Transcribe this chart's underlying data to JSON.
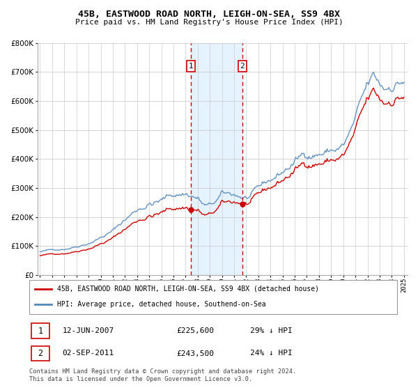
{
  "title": "45B, EASTWOOD ROAD NORTH, LEIGH-ON-SEA, SS9 4BX",
  "subtitle": "Price paid vs. HM Land Registry's House Price Index (HPI)",
  "legend_label1": "45B, EASTWOOD ROAD NORTH, LEIGH-ON-SEA, SS9 4BX (detached house)",
  "legend_label2": "HPI: Average price, detached house, Southend-on-Sea",
  "table_row1": [
    "1",
    "12-JUN-2007",
    "£225,600",
    "29% ↓ HPI"
  ],
  "table_row2": [
    "2",
    "02-SEP-2011",
    "£243,500",
    "24% ↓ HPI"
  ],
  "footer": "Contains HM Land Registry data © Crown copyright and database right 2024.\nThis data is licensed under the Open Government Licence v3.0.",
  "sale1_date": 2007.44,
  "sale1_price": 225600,
  "sale2_date": 2011.67,
  "sale2_price": 243500,
  "hpi_color": "#5588bb",
  "price_color": "#cc0000",
  "shade_color": "#ddeeff",
  "marker_color": "#cc0000",
  "ylim": [
    0,
    800000
  ],
  "xlim_start": 1994.8,
  "xlim_end": 2025.3
}
